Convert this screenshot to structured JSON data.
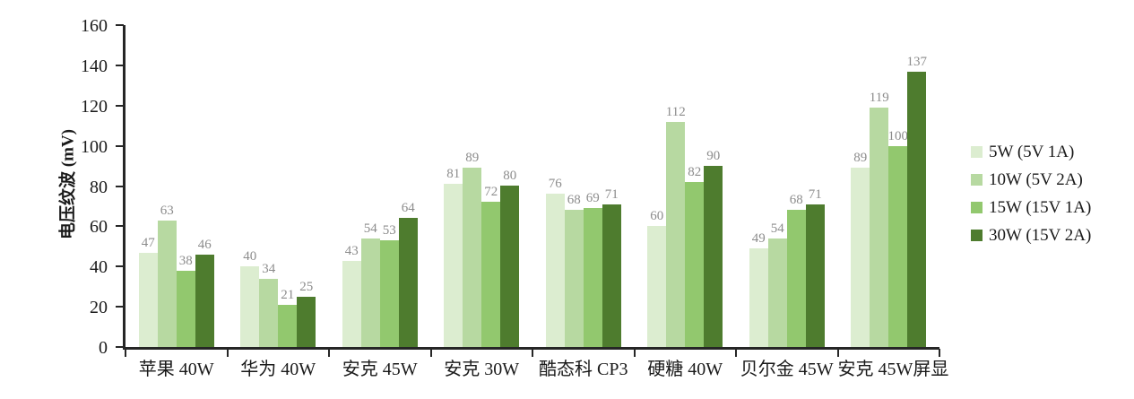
{
  "chart_data": {
    "type": "bar",
    "title": "",
    "ylabel": "电压纹波 (mV)",
    "xlabel": "",
    "ylim": [
      0,
      160
    ],
    "ytick_step": 20,
    "grid": false,
    "legend_position": "right",
    "axis_color": "#262626",
    "value_label_color": "#8c8c8c",
    "categories": [
      "苹果 40W",
      "华为 40W",
      "安克 45W",
      "安克 30W",
      "酷态科 CP3",
      "硬糖 40W",
      "贝尔金 45W",
      "安克 45W屏显"
    ],
    "series": [
      {
        "name": "5W (5V 1A)",
        "color": "#dcedd0",
        "values": [
          47,
          40,
          43,
          81,
          76,
          60,
          49,
          89
        ]
      },
      {
        "name": "10W (5V 2A)",
        "color": "#b7d9a1",
        "values": [
          63,
          34,
          54,
          89,
          68,
          112,
          54,
          119
        ]
      },
      {
        "name": "15W (15V 1A)",
        "color": "#92c86e",
        "values": [
          38,
          21,
          53,
          72,
          69,
          82,
          68,
          100
        ]
      },
      {
        "name": "30W (15V 2A)",
        "color": "#4e7c2e",
        "values": [
          46,
          25,
          64,
          80,
          71,
          90,
          71,
          137
        ]
      }
    ]
  }
}
